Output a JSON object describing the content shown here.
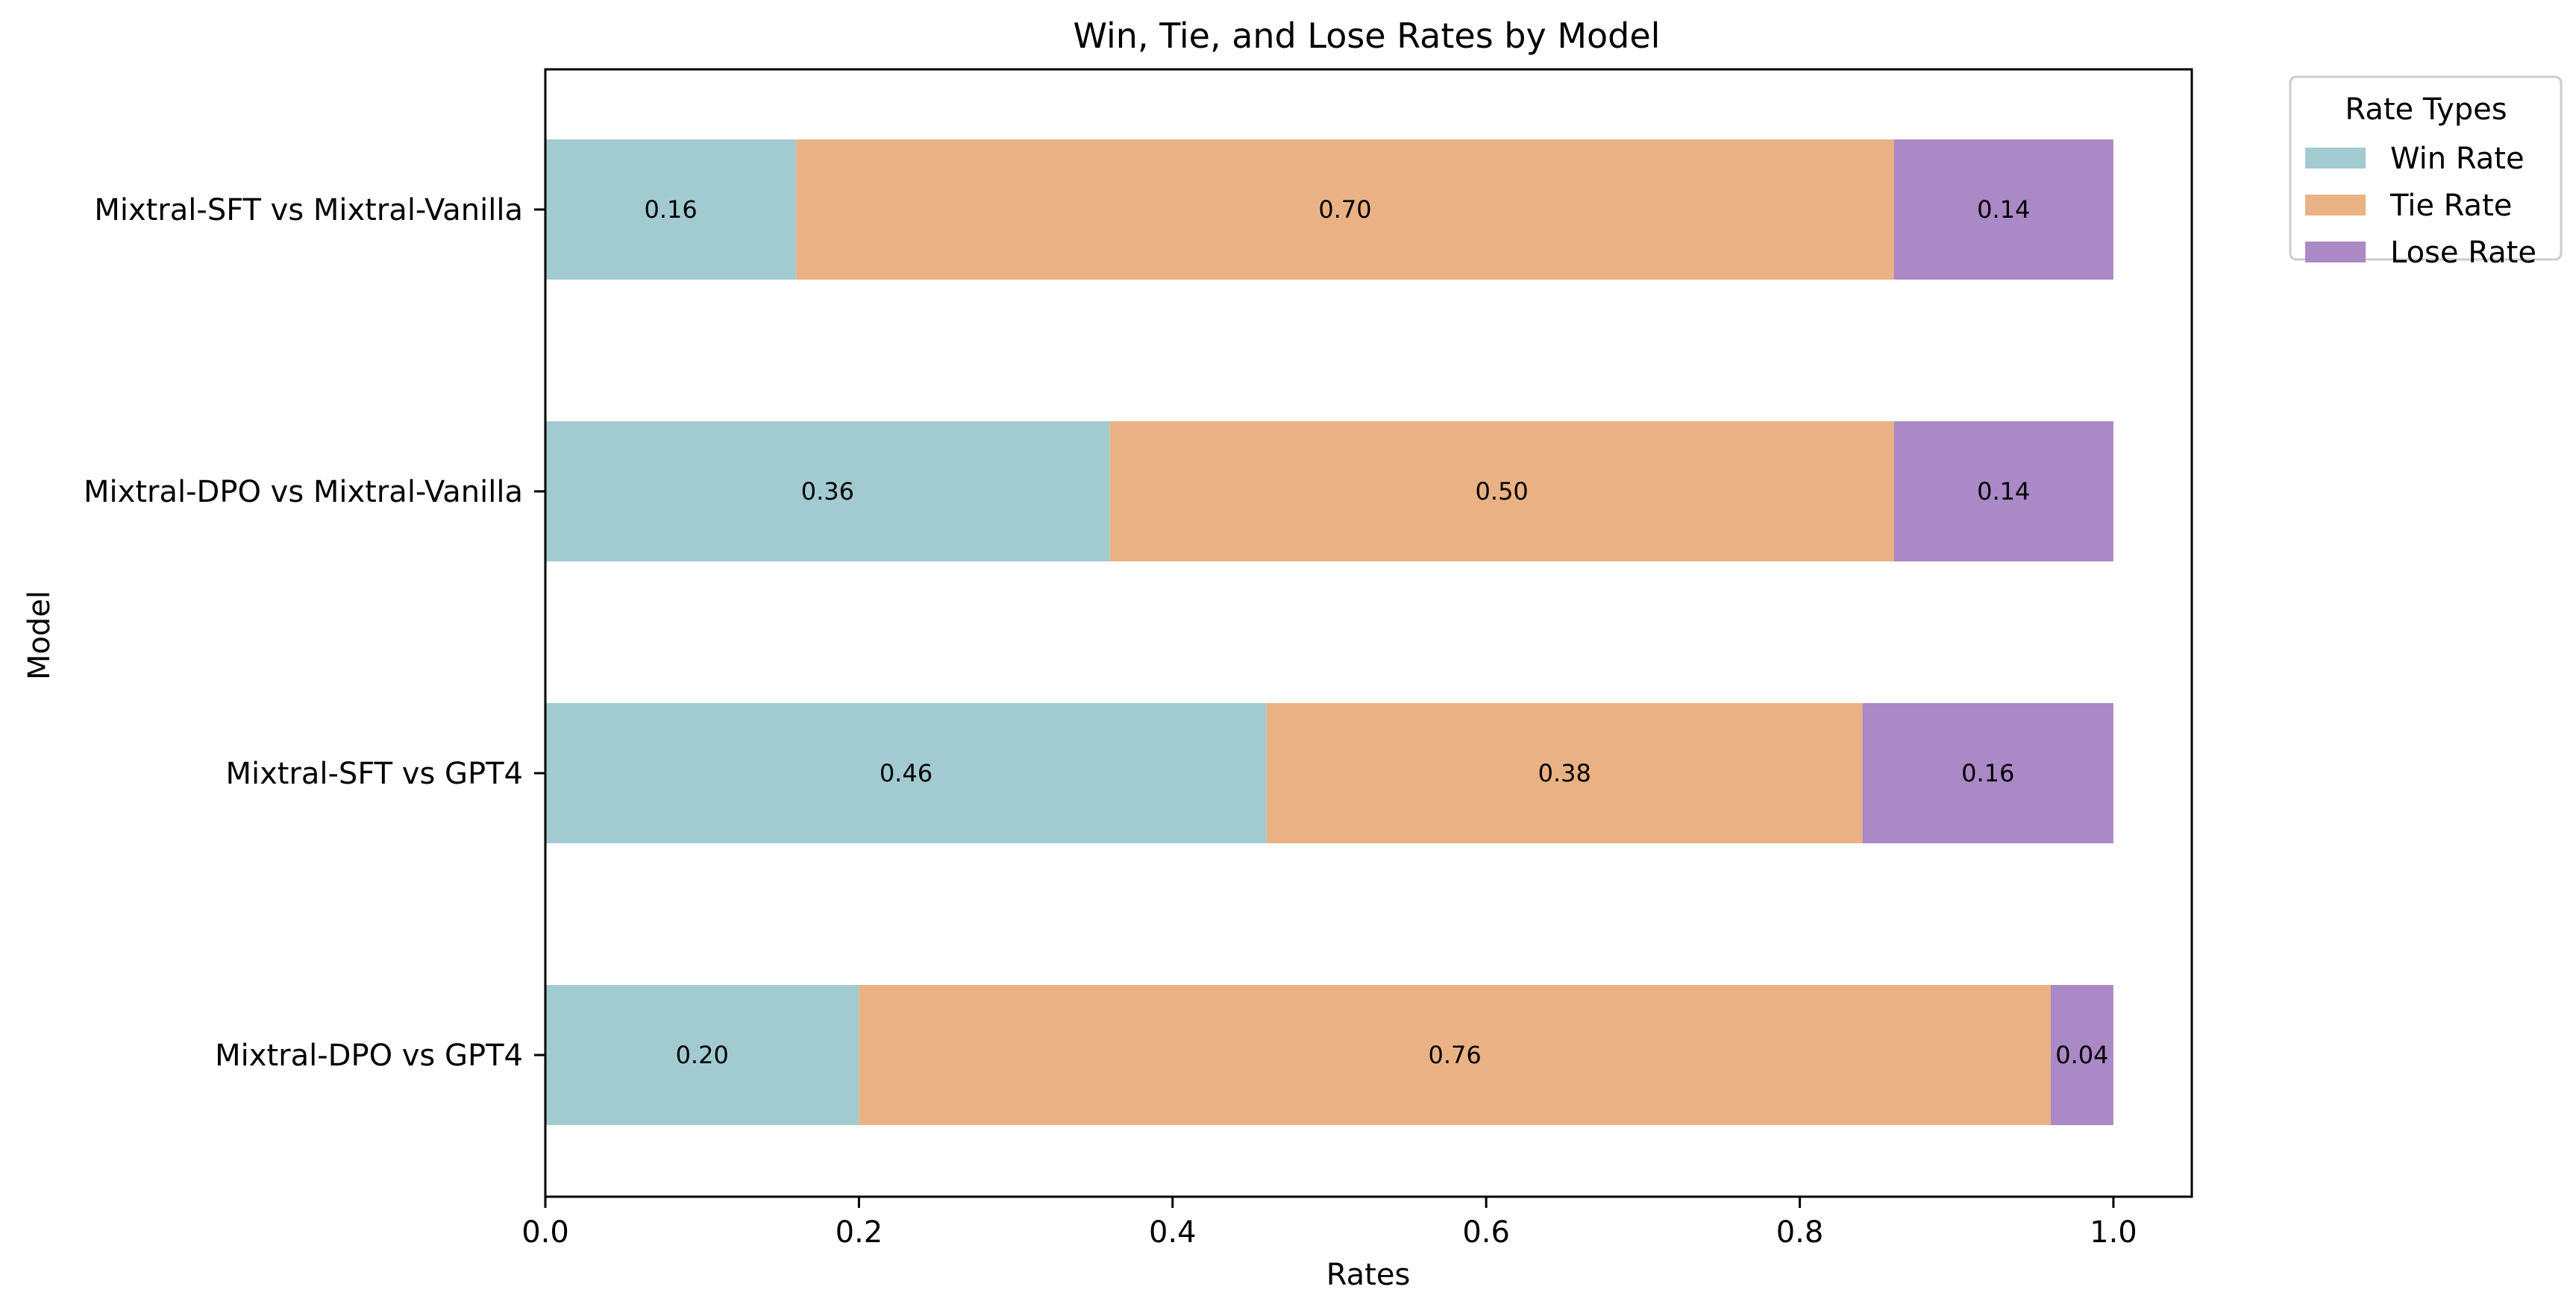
{
  "chart_data": {
    "type": "bar",
    "orientation": "horizontal",
    "stacked": true,
    "title": "Win, Tie, and Lose Rates by Model",
    "xlabel": "Rates",
    "ylabel": "Model",
    "xlim": [
      0,
      1.05
    ],
    "x_ticks": [
      0.0,
      0.2,
      0.4,
      0.6,
      0.8,
      1.0
    ],
    "x_tick_labels": [
      "0.0",
      "0.2",
      "0.4",
      "0.6",
      "0.8",
      "1.0"
    ],
    "grid": false,
    "categories": [
      "Mixtral-DPO vs GPT4",
      "Mixtral-SFT vs GPT4",
      "Mixtral-DPO vs Mixtral-Vanilla",
      "Mixtral-SFT vs Mixtral-Vanilla"
    ],
    "series": [
      {
        "name": "Win Rate",
        "color": "#a2cbd1",
        "values": [
          0.2,
          0.46,
          0.36,
          0.16
        ],
        "labels": [
          "0.20",
          "0.46",
          "0.36",
          "0.16"
        ]
      },
      {
        "name": "Tie Rate",
        "color": "#eab284",
        "values": [
          0.76,
          0.38,
          0.5,
          0.7
        ],
        "labels": [
          "0.76",
          "0.38",
          "0.50",
          "0.70"
        ]
      },
      {
        "name": "Lose Rate",
        "color": "#ab88c6",
        "values": [
          0.04,
          0.16,
          0.14,
          0.14
        ],
        "labels": [
          "0.04",
          "0.16",
          "0.14",
          "0.14"
        ]
      }
    ],
    "legend": {
      "title": "Rate Types",
      "placement": "outside-top-right"
    }
  }
}
